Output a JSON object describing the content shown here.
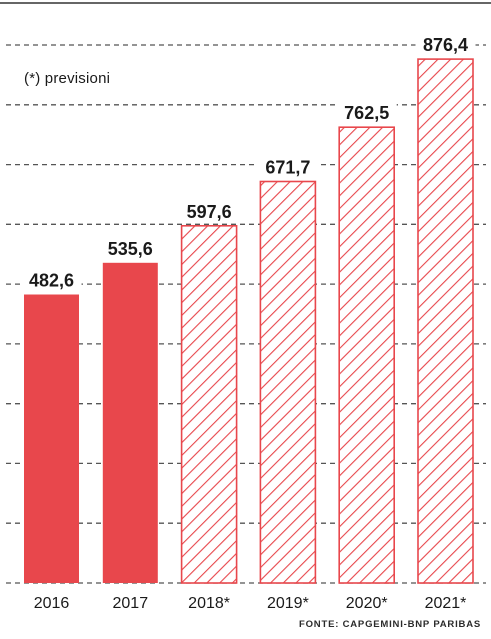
{
  "note": "(*) previsioni",
  "source": "FONTE: CAPGEMINI-BNP PARIBAS",
  "colors": {
    "actual": "#e8474c",
    "forecast": "#e8474c",
    "grid": "#555555",
    "text": "#1a1a1a"
  },
  "chart_data": {
    "type": "bar",
    "categories": [
      "2016",
      "2017",
      "2018*",
      "2019*",
      "2020*",
      "2021*"
    ],
    "values": [
      482.6,
      535.6,
      597.6,
      671.7,
      762.5,
      876.4
    ],
    "value_labels": [
      "482,6",
      "535,6",
      "597,6",
      "671,7",
      "762,5",
      "876,4"
    ],
    "forecast": [
      false,
      false,
      true,
      true,
      true,
      true
    ],
    "title": "",
    "xlabel": "",
    "ylabel": "",
    "ylim": [
      0,
      900
    ],
    "grid": true,
    "legend": "none"
  }
}
